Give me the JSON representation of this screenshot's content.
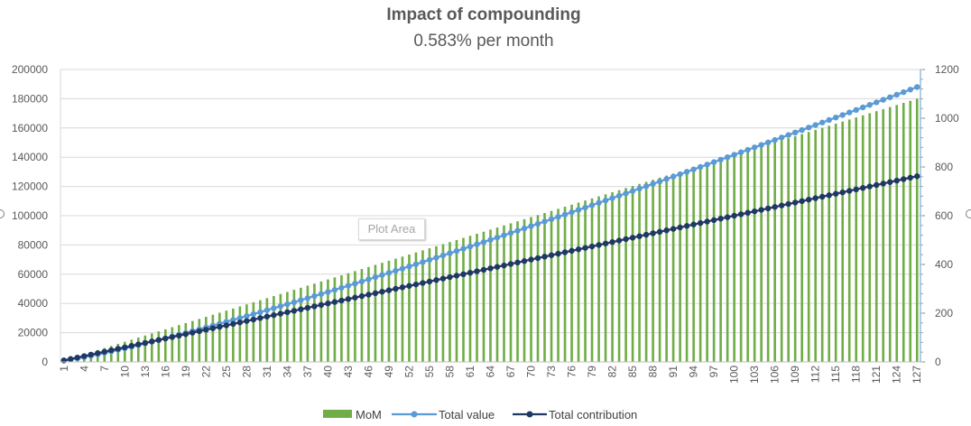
{
  "chart_data": {
    "type": "bar+line",
    "title": "Impact of compounding",
    "subtitle": "0.583% per month",
    "x_tick_labels": [
      "1",
      "4",
      "7",
      "10",
      "13",
      "16",
      "19",
      "22",
      "25",
      "28",
      "31",
      "34",
      "37",
      "40",
      "43",
      "46",
      "49",
      "52",
      "55",
      "58",
      "61",
      "64",
      "67",
      "70",
      "73",
      "76",
      "79",
      "82",
      "85",
      "88",
      "91",
      "94",
      "97",
      "100",
      "103",
      "106",
      "109",
      "112",
      "115",
      "118",
      "121",
      "124",
      "127"
    ],
    "x": {
      "start": 1,
      "end": 127
    },
    "y_left": {
      "min": 0,
      "max": 200000,
      "ticks": [
        "0",
        "20000",
        "40000",
        "60000",
        "80000",
        "100000",
        "120000",
        "140000",
        "160000",
        "180000",
        "200000"
      ]
    },
    "y_right": {
      "min": 0,
      "max": 1200,
      "ticks": [
        "0",
        "200",
        "400",
        "600",
        "800",
        "1000",
        "1200"
      ]
    },
    "series": [
      {
        "name": "MoM",
        "type": "bar",
        "axis": "right",
        "color": "#70ad47",
        "values_description": "monthly growth, rising from about 6 at month 1 to about 1080 at month 127"
      },
      {
        "name": "Total value",
        "type": "line",
        "axis": "left",
        "color": "#5b9bd5",
        "start_value": 1000,
        "end_value": 188000
      },
      {
        "name": "Total contribution",
        "type": "line",
        "axis": "left",
        "color": "#1f3864",
        "start_value": 1000,
        "end_value": 127000
      }
    ],
    "grid": true,
    "legend_position": "bottom"
  },
  "overlay": {
    "plot_area_label": "Plot Area"
  }
}
